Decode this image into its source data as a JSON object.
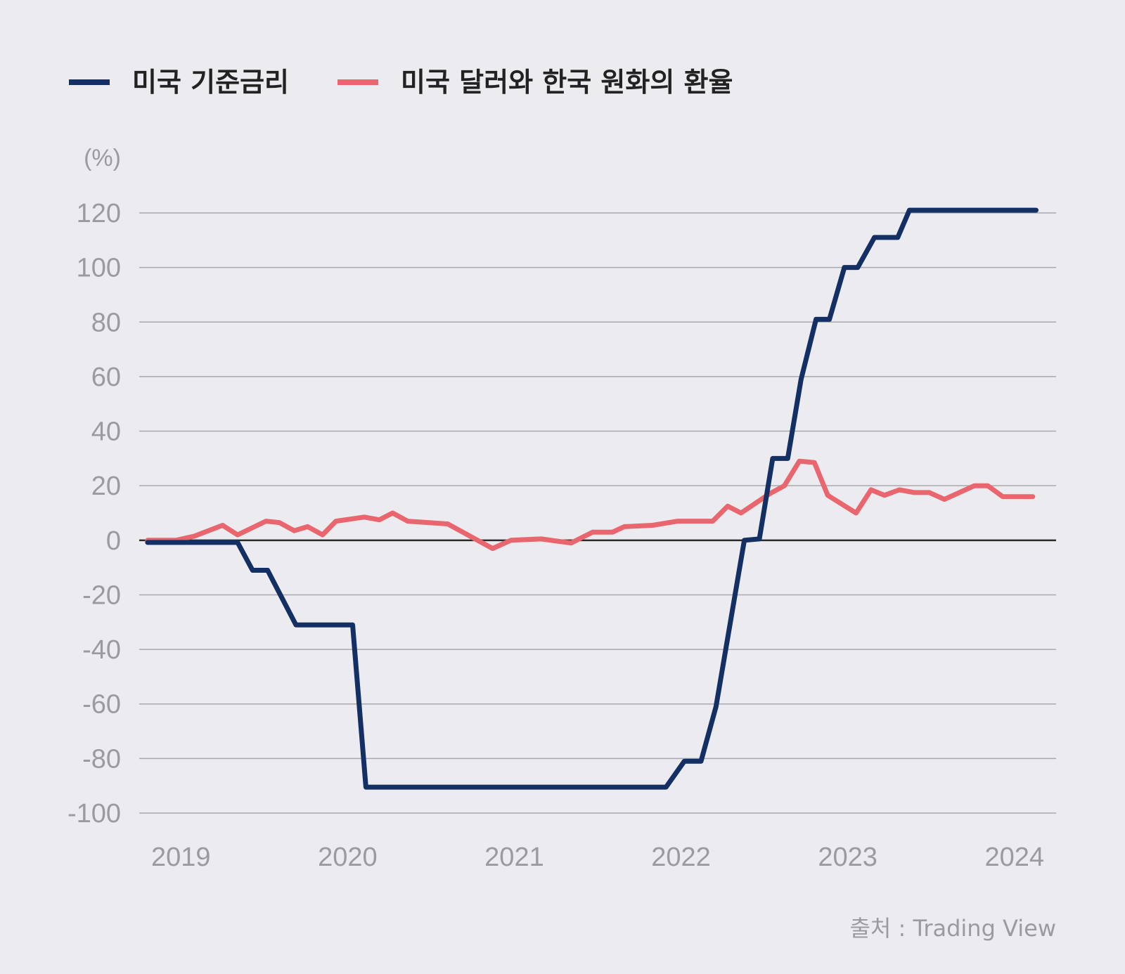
{
  "chart_data": {
    "type": "line",
    "title": "",
    "xlabel": "",
    "ylabel": "(%)",
    "ylim": [
      -100,
      120
    ],
    "yticks": [
      120,
      100,
      80,
      60,
      40,
      20,
      0,
      -20,
      -40,
      -60,
      -80,
      -100
    ],
    "ytick_labels": [
      "120",
      "100",
      "80",
      "60",
      "40",
      "20",
      "0",
      "-20",
      "-40",
      "-60",
      "-80",
      "-100"
    ],
    "xlim": [
      2018.75,
      2024.25
    ],
    "xticks": [
      2019,
      2020,
      2021,
      2022,
      2023,
      2024
    ],
    "xtick_labels": [
      "2019",
      "2020",
      "2021",
      "2022",
      "2023",
      "2024"
    ],
    "grid": true,
    "legend_position": "top-left",
    "source": "출처 : Trading View",
    "series": [
      {
        "name": "미국 기준금리",
        "color": "#132f63",
        "x": [
          2018.8,
          2019.34,
          2019.43,
          2019.52,
          2019.69,
          2020.03,
          2020.11,
          2021.91,
          2022.02,
          2022.12,
          2022.21,
          2022.38,
          2022.47,
          2022.55,
          2022.64,
          2022.72,
          2022.81,
          2022.89,
          2022.98,
          2023.06,
          2023.16,
          2023.3,
          2023.37,
          2023.44,
          2023.51,
          2023.59,
          2023.67,
          2024.13
        ],
        "values": [
          -0.8,
          -0.8,
          -11,
          -11,
          -31,
          -31,
          -90.5,
          -90.5,
          -81,
          -81,
          -61,
          0,
          0.5,
          30,
          30,
          59,
          81,
          81,
          100,
          100,
          111,
          111,
          121,
          121,
          121,
          121,
          121,
          121
        ]
      },
      {
        "name": "미국 달러와 한국 원화의 환율",
        "color": "#e9666f",
        "x": [
          2018.8,
          2018.97,
          2019.08,
          2019.25,
          2019.34,
          2019.51,
          2019.59,
          2019.68,
          2019.76,
          2019.85,
          2019.93,
          2020.1,
          2020.19,
          2020.27,
          2020.36,
          2020.6,
          2020.87,
          2020.98,
          2021.16,
          2021.34,
          2021.47,
          2021.59,
          2021.66,
          2021.83,
          2021.98,
          2022.08,
          2022.19,
          2022.28,
          2022.36,
          2022.53,
          2022.62,
          2022.71,
          2022.8,
          2022.88,
          2023.05,
          2023.14,
          2023.22,
          2023.31,
          2023.4,
          2023.49,
          2023.58,
          2023.76,
          2023.84,
          2023.93,
          2024.01,
          2024.11
        ],
        "values": [
          0,
          0,
          1.5,
          5.5,
          2,
          7,
          6.5,
          3.5,
          5,
          2,
          7,
          8.5,
          7.5,
          10,
          7,
          6,
          -3,
          0,
          0.5,
          -1,
          3,
          3,
          5,
          5.5,
          7,
          7,
          7,
          12.5,
          10,
          17,
          20,
          29,
          28.5,
          16.5,
          10,
          18.5,
          16.5,
          18.5,
          17.5,
          17.5,
          15,
          20,
          20,
          16,
          16,
          16
        ]
      }
    ]
  }
}
